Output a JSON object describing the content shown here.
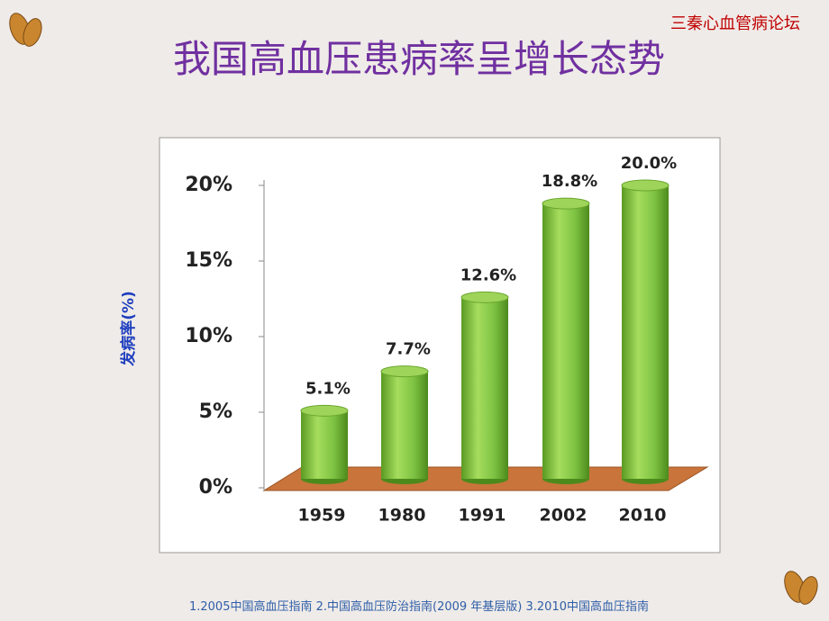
{
  "header": "三秦心血管病论坛",
  "slide_title": "我国高血压患病率呈增长态势",
  "footnote": "1.2005中国高血压指南  2.中国高血压防治指南(2009 年基层版)  3.2010中国高血压指南",
  "chart_data": {
    "type": "bar",
    "y_label": "发病率(%)",
    "categories": [
      "1959",
      "1980",
      "1991",
      "2002",
      "2010"
    ],
    "values": [
      5.1,
      7.7,
      12.6,
      18.8,
      20.0
    ],
    "value_labels": [
      "5.1%",
      "7.7%",
      "12.6%",
      "18.8%",
      "20.0%"
    ],
    "color": "#7dc242",
    "ylim": [
      0,
      20
    ],
    "yticks": [
      {
        "value": 0,
        "label": "0%"
      },
      {
        "value": 5,
        "label": "5%"
      },
      {
        "value": 10,
        "label": "10%"
      },
      {
        "value": 15,
        "label": "15%"
      },
      {
        "value": 20,
        "label": "20%"
      }
    ]
  }
}
